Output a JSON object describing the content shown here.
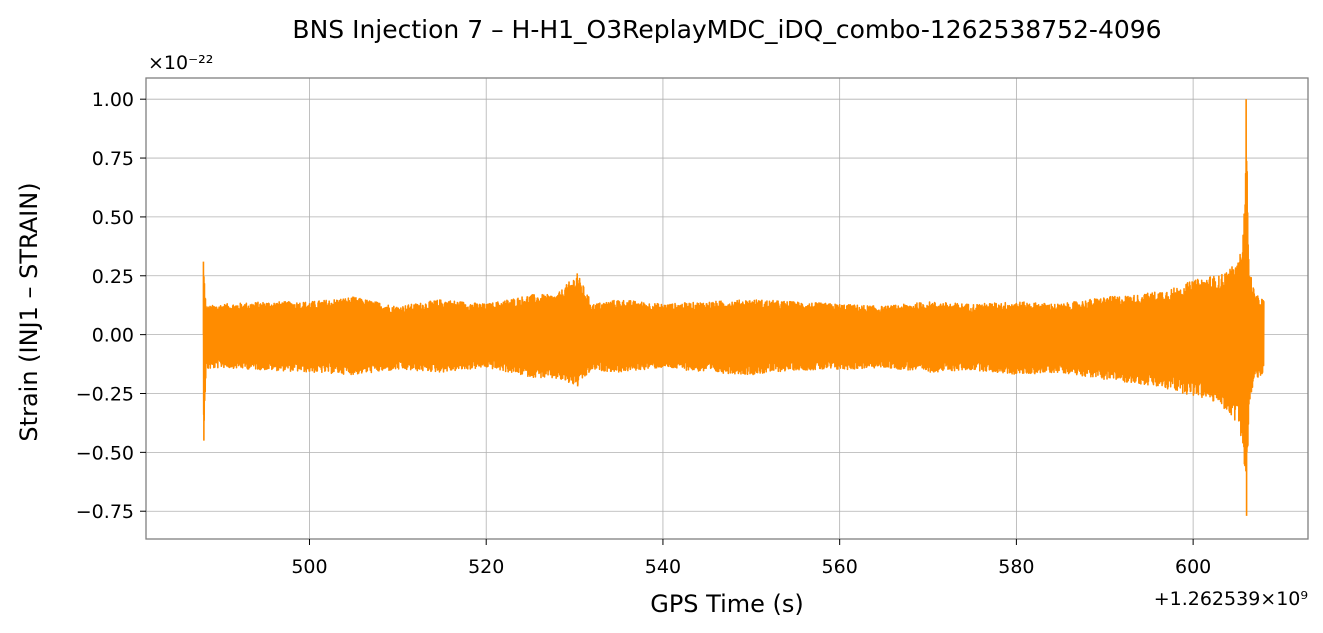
{
  "chart_data": {
    "type": "line",
    "title": "BNS Injection 7 – H-H1_O3ReplayMDC_iDQ_combo-1262538752-4096",
    "xlabel": "GPS Time (s)",
    "ylabel": "Strain (INJ1 – STRAIN)",
    "x_offset_label": "+1.262539×10⁹",
    "y_multiplier_label": "×10⁻²²",
    "xlim": [
      481.5,
      613.0
    ],
    "ylim": [
      -0.868,
      1.09
    ],
    "x_ticks": [
      500,
      520,
      540,
      560,
      580,
      600
    ],
    "x_tick_labels": [
      "500",
      "520",
      "540",
      "560",
      "580",
      "600"
    ],
    "y_ticks": [
      -0.75,
      -0.5,
      -0.25,
      0.0,
      0.25,
      0.5,
      0.75,
      1.0
    ],
    "y_tick_labels": [
      "−0.75",
      "−0.50",
      "−0.25",
      "0.00",
      "0.25",
      "0.50",
      "0.75",
      "1.00"
    ],
    "grid": true,
    "series_color": "#ff8c00",
    "envelope_x": [
      488.0,
      488.3,
      490,
      495,
      500,
      505,
      510,
      515,
      520,
      525,
      528,
      530.3,
      532,
      535,
      540,
      545,
      550,
      555,
      560,
      565,
      570,
      575,
      580,
      585,
      590,
      594,
      598,
      600,
      602,
      603,
      604,
      605,
      605.5,
      605.8,
      606.0,
      606.3,
      607,
      608
    ],
    "envelope_upper": [
      0.31,
      0.12,
      0.13,
      0.14,
      0.14,
      0.16,
      0.12,
      0.15,
      0.13,
      0.17,
      0.17,
      0.26,
      0.13,
      0.15,
      0.13,
      0.14,
      0.15,
      0.14,
      0.13,
      0.12,
      0.14,
      0.13,
      0.14,
      0.13,
      0.16,
      0.17,
      0.2,
      0.23,
      0.25,
      0.25,
      0.28,
      0.3,
      0.37,
      0.55,
      1.0,
      0.3,
      0.17,
      0.15
    ],
    "envelope_lower": [
      -0.45,
      -0.15,
      -0.14,
      -0.15,
      -0.16,
      -0.17,
      -0.15,
      -0.16,
      -0.14,
      -0.18,
      -0.19,
      -0.22,
      -0.15,
      -0.16,
      -0.14,
      -0.16,
      -0.17,
      -0.15,
      -0.15,
      -0.14,
      -0.16,
      -0.15,
      -0.17,
      -0.16,
      -0.19,
      -0.21,
      -0.24,
      -0.26,
      -0.28,
      -0.3,
      -0.33,
      -0.38,
      -0.44,
      -0.6,
      -0.77,
      -0.32,
      -0.19,
      -0.17
    ]
  }
}
